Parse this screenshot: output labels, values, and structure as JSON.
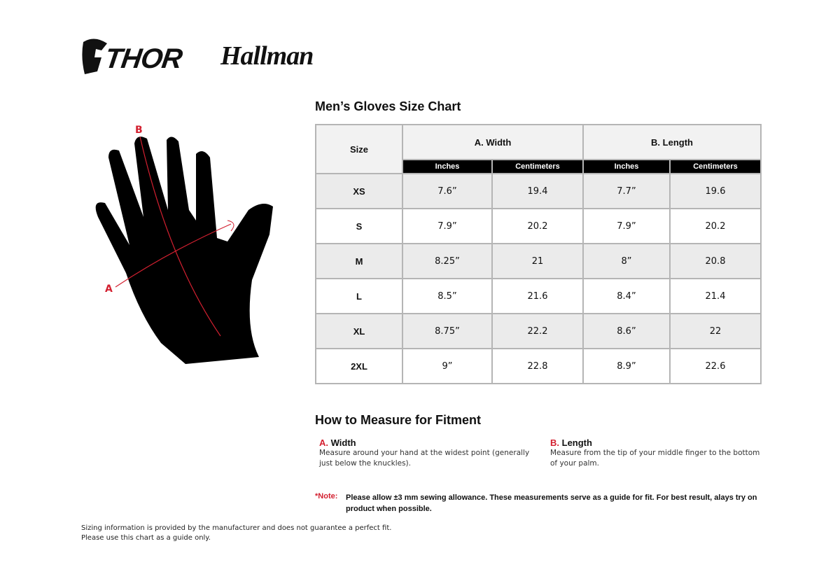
{
  "logos": {
    "thor": "THOR",
    "hallman": "Hallman"
  },
  "title": "Men’s Gloves Size Chart",
  "table": {
    "size_header": "Size",
    "groups": [
      "A. Width",
      "B. Length"
    ],
    "subheaders": [
      "Inches",
      "Centimeters",
      "Inches",
      "Centimeters"
    ],
    "rows": [
      {
        "size": "XS",
        "vals": [
          "7.6”",
          "19.4",
          "7.7”",
          "19.6"
        ]
      },
      {
        "size": "S",
        "vals": [
          "7.9”",
          "20.2",
          "7.9”",
          "20.2"
        ]
      },
      {
        "size": "M",
        "vals": [
          "8.25”",
          "21",
          "8”",
          "20.8"
        ]
      },
      {
        "size": "L",
        "vals": [
          "8.5”",
          "21.6",
          "8.4”",
          "21.4"
        ]
      },
      {
        "size": "XL",
        "vals": [
          "8.75”",
          "22.2",
          "8.6”",
          "22"
        ]
      },
      {
        "size": "2XL",
        "vals": [
          "9”",
          "22.8",
          "8.9”",
          "22.6"
        ]
      }
    ]
  },
  "diagram": {
    "a": "A",
    "b": "B"
  },
  "measure": {
    "title": "How to Measure for Fitment",
    "a": {
      "letter": "A.",
      "label": "Width",
      "text": "Measure around your hand at the widest point (generally just below the knuckles)."
    },
    "b": {
      "letter": "B.",
      "label": "Length",
      "text": "Measure from the tip of your middle finger to the bottom of your palm."
    }
  },
  "note": {
    "label": "*Note:",
    "text": "Please allow ±3 mm sewing allowance. These measurements serve as a guide for fit. For best result, alays try on product when possible."
  },
  "footer": {
    "line1": "Sizing information is provided by the manufacturer and does not guarantee a perfect fit.",
    "line2": "Please use this chart as a guide only."
  },
  "colors": {
    "accent": "#d32030",
    "header_bg": "#f2f2f2",
    "alt_row": "#ebebeb"
  }
}
